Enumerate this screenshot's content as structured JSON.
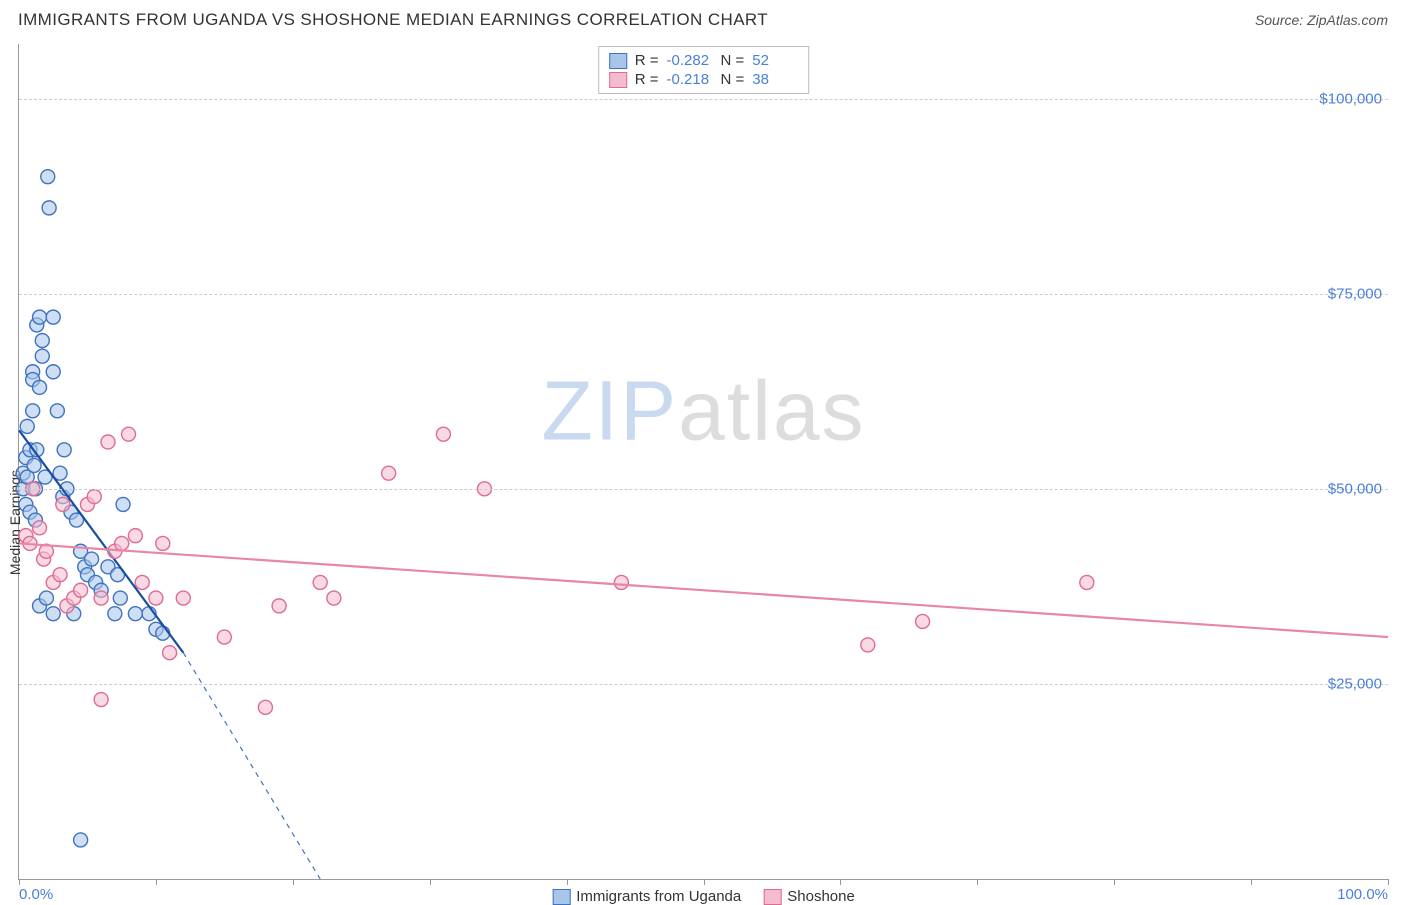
{
  "title": "IMMIGRANTS FROM UGANDA VS SHOSHONE MEDIAN EARNINGS CORRELATION CHART",
  "source_label": "Source:",
  "source_value": "ZipAtlas.com",
  "watermark": {
    "part1": "ZIP",
    "part2": "atlas"
  },
  "ylabel": "Median Earnings",
  "chart": {
    "type": "scatter",
    "xlim": [
      0,
      100
    ],
    "ylim": [
      0,
      107000
    ],
    "x_tick_positions": [
      0,
      10,
      20,
      30,
      40,
      50,
      60,
      70,
      80,
      90,
      100
    ],
    "x_tick_labels_shown": {
      "0": "0.0%",
      "100": "100.0%"
    },
    "y_gridlines": [
      25000,
      50000,
      75000,
      100000
    ],
    "y_tick_labels": {
      "25000": "$25,000",
      "50000": "$50,000",
      "75000": "$75,000",
      "100000": "$100,000"
    },
    "grid_color": "#cccccc",
    "axis_color": "#999999",
    "tick_label_color": "#4a7fd8",
    "background_color": "#ffffff",
    "marker_radius": 7,
    "marker_stroke_width": 1.4,
    "marker_fill_opacity": 0.32,
    "series": [
      {
        "name": "Immigrants from Uganda",
        "color": "#5b8fd6",
        "stroke": "#3f73c0",
        "fill": "#a9c5ea",
        "R": "-0.282",
        "N": "52",
        "trend": {
          "x1": 0,
          "y1": 57500,
          "x2": 22,
          "y2": 0,
          "solid_until_x": 12,
          "solid_until_y": 29000,
          "width": 2.2
        },
        "points": [
          [
            0.3,
            52000
          ],
          [
            0.3,
            50000
          ],
          [
            0.5,
            48000
          ],
          [
            0.5,
            54000
          ],
          [
            0.6,
            58000
          ],
          [
            0.6,
            51500
          ],
          [
            0.8,
            47000
          ],
          [
            0.8,
            55000
          ],
          [
            1.0,
            60000
          ],
          [
            1.0,
            65000
          ],
          [
            1.0,
            64000
          ],
          [
            1.1,
            53000
          ],
          [
            1.2,
            50000
          ],
          [
            1.2,
            46000
          ],
          [
            1.3,
            55000
          ],
          [
            1.3,
            71000
          ],
          [
            1.5,
            72000
          ],
          [
            1.5,
            63000
          ],
          [
            1.9,
            51500
          ],
          [
            2.1,
            90000
          ],
          [
            2.2,
            86000
          ],
          [
            1.7,
            67000
          ],
          [
            1.7,
            69000
          ],
          [
            2.5,
            72000
          ],
          [
            2.5,
            65000
          ],
          [
            2.8,
            60000
          ],
          [
            3.0,
            52000
          ],
          [
            3.2,
            49000
          ],
          [
            3.3,
            55000
          ],
          [
            3.5,
            50000
          ],
          [
            3.8,
            47000
          ],
          [
            4.2,
            46000
          ],
          [
            4.5,
            42000
          ],
          [
            4.8,
            40000
          ],
          [
            5.0,
            39000
          ],
          [
            5.3,
            41000
          ],
          [
            5.6,
            38000
          ],
          [
            6.0,
            37000
          ],
          [
            6.5,
            40000
          ],
          [
            7.0,
            34000
          ],
          [
            7.2,
            39000
          ],
          [
            7.4,
            36000
          ],
          [
            7.6,
            48000
          ],
          [
            8.5,
            34000
          ],
          [
            9.5,
            34000
          ],
          [
            10.0,
            32000
          ],
          [
            10.5,
            31500
          ],
          [
            1.5,
            35000
          ],
          [
            2.0,
            36000
          ],
          [
            2.5,
            34000
          ],
          [
            4.0,
            34000
          ],
          [
            4.5,
            5000
          ]
        ]
      },
      {
        "name": "Shoshone",
        "color": "#e886a5",
        "stroke": "#e06b92",
        "fill": "#f4bcd0",
        "R": "-0.218",
        "N": "38",
        "trend": {
          "x1": 0,
          "y1": 43000,
          "x2": 100,
          "y2": 31000,
          "width": 2.2
        },
        "points": [
          [
            0.5,
            44000
          ],
          [
            0.8,
            43000
          ],
          [
            1.0,
            50000
          ],
          [
            1.5,
            45000
          ],
          [
            1.8,
            41000
          ],
          [
            2.0,
            42000
          ],
          [
            2.5,
            38000
          ],
          [
            3.0,
            39000
          ],
          [
            3.2,
            48000
          ],
          [
            3.5,
            35000
          ],
          [
            4.0,
            36000
          ],
          [
            4.5,
            37000
          ],
          [
            5.0,
            48000
          ],
          [
            5.5,
            49000
          ],
          [
            6.0,
            36000
          ],
          [
            6.5,
            56000
          ],
          [
            7.0,
            42000
          ],
          [
            7.5,
            43000
          ],
          [
            8.0,
            57000
          ],
          [
            8.5,
            44000
          ],
          [
            9.0,
            38000
          ],
          [
            10.0,
            36000
          ],
          [
            10.5,
            43000
          ],
          [
            11.0,
            29000
          ],
          [
            12.0,
            36000
          ],
          [
            6.0,
            23000
          ],
          [
            15.0,
            31000
          ],
          [
            18.0,
            22000
          ],
          [
            19.0,
            35000
          ],
          [
            22.0,
            38000
          ],
          [
            23.0,
            36000
          ],
          [
            27.0,
            52000
          ],
          [
            31.0,
            57000
          ],
          [
            34.0,
            50000
          ],
          [
            44.0,
            38000
          ],
          [
            62.0,
            30000
          ],
          [
            66.0,
            33000
          ],
          [
            78.0,
            38000
          ]
        ]
      }
    ],
    "stats_box": {
      "R_label": "R =",
      "N_label": "N ="
    },
    "legend_bottom": true
  }
}
